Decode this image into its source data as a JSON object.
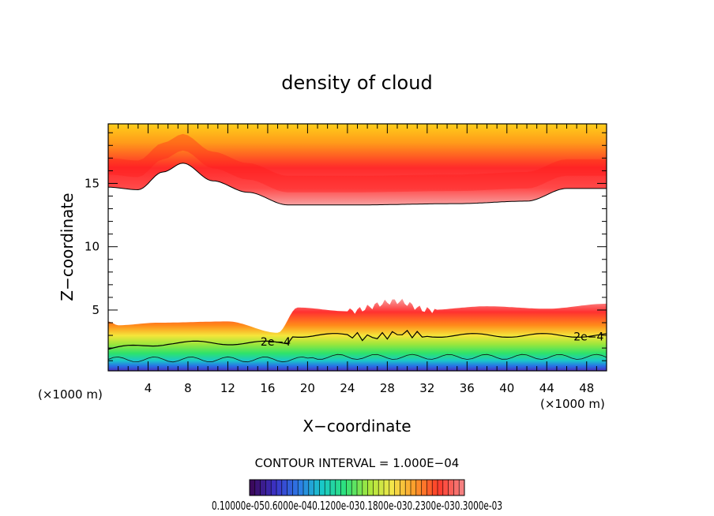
{
  "chart_data": {
    "type": "contour",
    "title": "density of cloud",
    "xlabel": "X−coordinate",
    "ylabel": "Z−coordinate",
    "x_unit_left": "(×1000 m)",
    "x_unit_right": "(×1000 m)",
    "xlim": [
      0,
      50
    ],
    "ylim": [
      0.2,
      19.7
    ],
    "xticks": [
      4,
      8,
      12,
      16,
      20,
      24,
      28,
      32,
      36,
      40,
      44,
      48
    ],
    "yticks": [
      5,
      10,
      15
    ],
    "contour_labels": [
      {
        "text": "2e−4",
        "x": 16.8,
        "z": 2.2
      },
      {
        "text": "2e−4",
        "x": 48.2,
        "z": 2.6
      }
    ],
    "contour_interval_text": "CONTOUR INTERVAL = 1.000E−04",
    "colorbar_labels": [
      "0.1000e-05",
      "0.6000e-04",
      "0.1200e-03",
      "0.1800e-03",
      "0.2300e-03",
      "0.3000e-03"
    ],
    "colorbar_label_overlapped": "0.10000e-050.6000e-040.1200e-030.1800e-030.2300e-030.3000e-03",
    "colorbar_scale": [
      "#3b0a5e",
      "#3b33c8",
      "#2d7ae6",
      "#19c8c8",
      "#2ee37a",
      "#a8e63c",
      "#f2e64a",
      "#ff9a2a",
      "#ff3a2a",
      "#f58080"
    ],
    "upper_layer": {
      "base_z": [
        14.7,
        14.5,
        15.9,
        16.6,
        15.2,
        14.3,
        13.3,
        13.3,
        13.4,
        13.6,
        14.6,
        14.6
      ],
      "base_x": [
        0,
        3,
        5.5,
        7.5,
        10.5,
        14,
        18,
        25,
        35,
        42,
        46,
        50
      ]
    },
    "lower_layer": {
      "top_z": [
        4.1,
        3.8,
        4.0,
        4.1,
        3.2,
        5.2,
        4.9,
        5.7,
        5.0,
        5.3,
        5.1,
        5.5
      ],
      "top_x": [
        0,
        1,
        5,
        12,
        17,
        19,
        24,
        29,
        32,
        38,
        44,
        50
      ]
    }
  }
}
